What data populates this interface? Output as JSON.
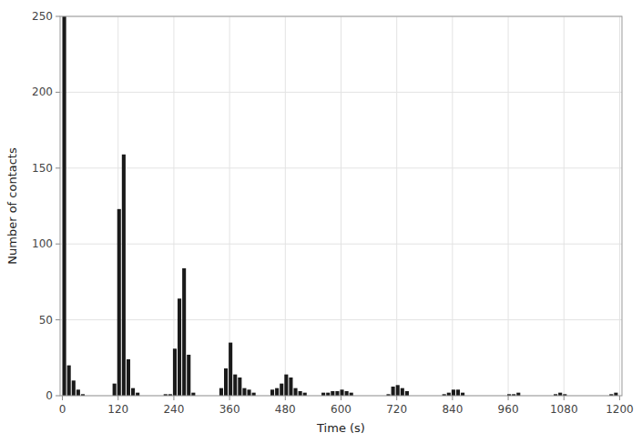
{
  "chart_data": {
    "type": "histogram",
    "xlabel": "Time (s)",
    "ylabel": "Number of contacts",
    "color": "#1a1a1a",
    "bin_width": 8,
    "x": [
      0,
      10,
      20,
      30,
      40,
      108,
      118,
      128,
      138,
      148,
      158,
      218,
      228,
      238,
      248,
      258,
      268,
      278,
      338,
      348,
      358,
      368,
      378,
      388,
      398,
      408,
      448,
      458,
      468,
      478,
      488,
      498,
      508,
      518,
      558,
      568,
      578,
      588,
      598,
      608,
      618,
      698,
      708,
      718,
      728,
      738,
      818,
      828,
      838,
      848,
      858,
      958,
      968,
      978,
      1058,
      1068,
      1078,
      1178,
      1188
    ],
    "values": [
      250,
      20,
      10,
      4,
      1,
      8,
      123,
      159,
      24,
      5,
      2,
      1,
      1,
      31,
      64,
      84,
      27,
      2,
      5,
      18,
      35,
      14,
      12,
      5,
      4,
      2,
      4,
      5,
      8,
      14,
      12,
      5,
      3,
      2,
      2,
      2,
      3,
      3,
      4,
      3,
      2,
      1,
      6,
      7,
      5,
      3,
      1,
      2,
      4,
      4,
      2,
      1,
      1,
      2,
      1,
      2,
      1,
      1,
      2
    ],
    "xlim": [
      -5,
      1205
    ],
    "ylim": [
      0,
      250
    ],
    "xticks": [
      0,
      120,
      240,
      360,
      480,
      600,
      720,
      840,
      960,
      1080,
      1200
    ],
    "yticks": [
      0,
      50,
      100,
      150,
      200,
      250
    ],
    "grid": true
  }
}
